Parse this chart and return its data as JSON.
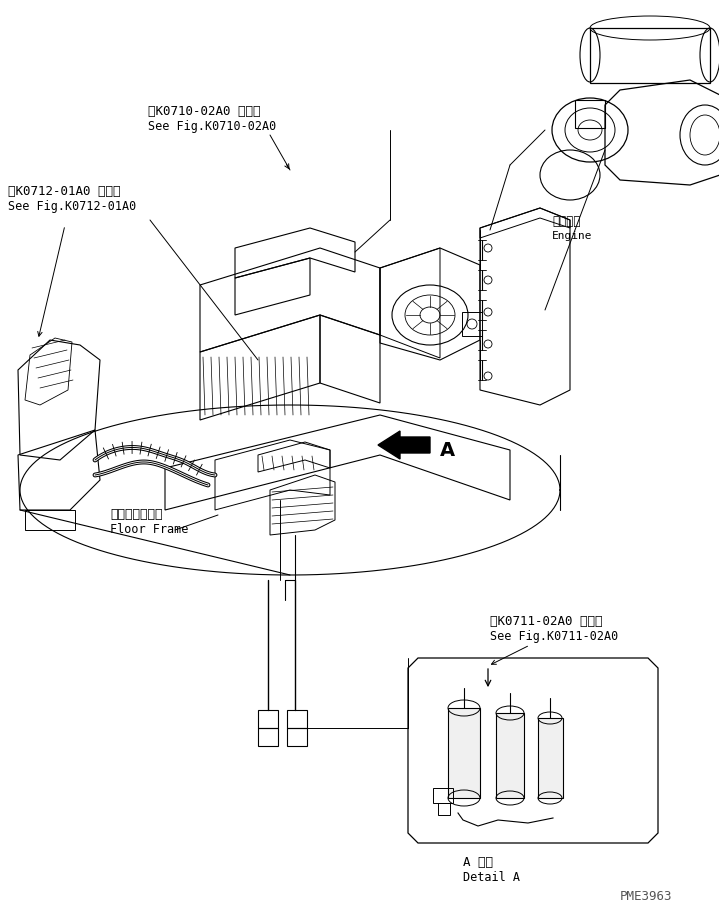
{
  "bg_color": "#ffffff",
  "lc": "#000000",
  "fig_w": 7.19,
  "fig_h": 9.16,
  "dpi": 100,
  "texts": {
    "ref1_jp": "第K0710-02A0 図参照",
    "ref1_en": "See Fig.K0710-02A0",
    "ref2_jp": "第K0712-01A0 図参照",
    "ref2_en": "See Fig.K0712-01A0",
    "ref3_jp": "第K0711-02A0 図参照",
    "ref3_en": "See Fig.K0711-02A0",
    "floor_jp": "フロアフレーム",
    "floor_en": "Floor Frame",
    "engine_jp": "エンジン",
    "engine_en": "Engine",
    "detail_jp": "A 詳細",
    "detail_en": "Detail A",
    "part_no": "PME3963",
    "arrow_a": "A"
  }
}
